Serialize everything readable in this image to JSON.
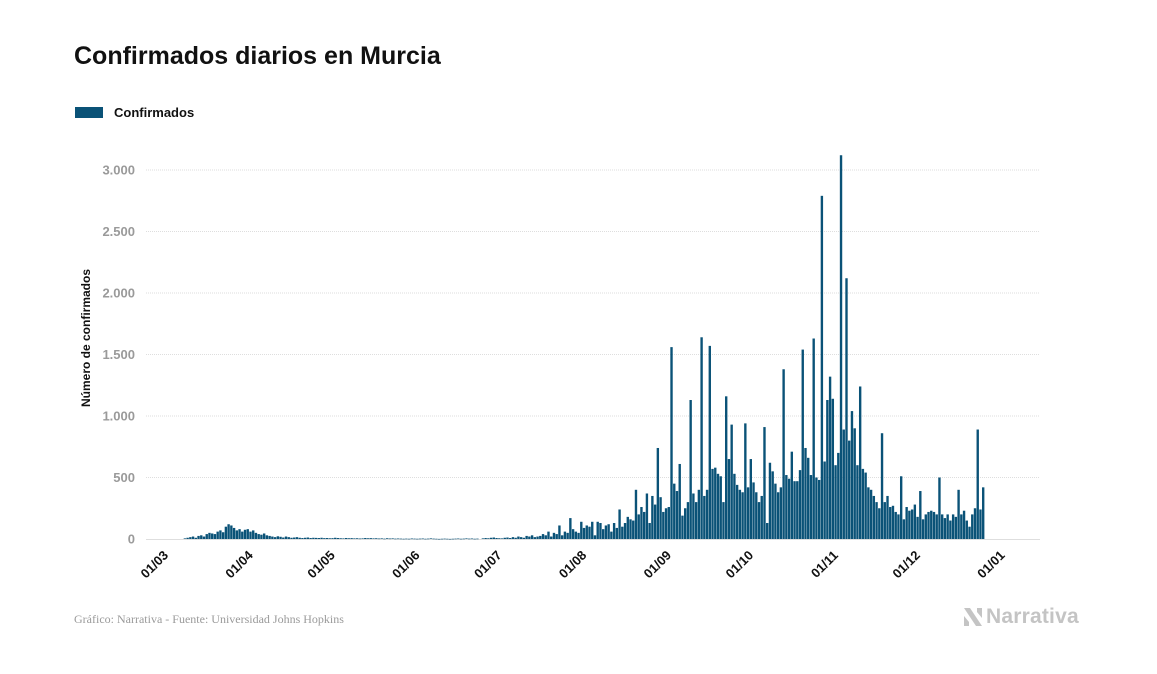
{
  "header": {
    "title": "Confirmados diarios en Murcia"
  },
  "legend": {
    "label": "Confirmados",
    "color": "#0a5277"
  },
  "footer": {
    "source": "Gráfico: Narrativa - Fuente: Universidad Johns Hopkins",
    "brand": "Narrativa",
    "brand_color": "#c4c4c4"
  },
  "colors": {
    "bar": "#0a5277",
    "grid": "#dedede",
    "tick_label": "#9a9a9a",
    "axis_title": "#111111"
  },
  "chart_data": {
    "type": "bar",
    "title": "Confirmados diarios en Murcia",
    "ylabel": "Número de confirmados",
    "xlabel": "",
    "ylim": [
      0,
      3250
    ],
    "yticks": [
      0,
      500,
      1000,
      1500,
      2000,
      2500,
      3000
    ],
    "ytick_labels": [
      "0",
      "500",
      "1.000",
      "1.500",
      "2.000",
      "2.500",
      "3.000"
    ],
    "xticks": [
      {
        "label": "01/03",
        "day": 0
      },
      {
        "label": "01/04",
        "day": 31
      },
      {
        "label": "01/05",
        "day": 61
      },
      {
        "label": "01/06",
        "day": 92
      },
      {
        "label": "01/07",
        "day": 122
      },
      {
        "label": "01/08",
        "day": 153
      },
      {
        "label": "01/09",
        "day": 184
      },
      {
        "label": "01/10",
        "day": 214
      },
      {
        "label": "01/11",
        "day": 245
      },
      {
        "label": "01/12",
        "day": 275
      },
      {
        "label": "01/01",
        "day": 306
      }
    ],
    "x_start": "01/03",
    "grid": true,
    "legend_position": "top-left",
    "series": [
      {
        "name": "Confirmados",
        "values": [
          0,
          0,
          0,
          0,
          0,
          0,
          0,
          0,
          5,
          10,
          15,
          20,
          10,
          25,
          30,
          20,
          40,
          50,
          45,
          40,
          60,
          70,
          55,
          100,
          120,
          110,
          90,
          70,
          80,
          60,
          75,
          80,
          60,
          70,
          50,
          40,
          35,
          45,
          30,
          25,
          20,
          15,
          22,
          18,
          12,
          20,
          15,
          10,
          12,
          15,
          10,
          8,
          10,
          12,
          8,
          10,
          9,
          8,
          10,
          7,
          8,
          6,
          7,
          10,
          8,
          6,
          5,
          8,
          6,
          7,
          5,
          6,
          4,
          5,
          8,
          6,
          7,
          5,
          6,
          4,
          5,
          3,
          6,
          4,
          5,
          3,
          4,
          3,
          2,
          3,
          2,
          4,
          3,
          2,
          3,
          4,
          2,
          3,
          5,
          3,
          2,
          1,
          2,
          3,
          2,
          1,
          2,
          3,
          4,
          2,
          3,
          5,
          3,
          4,
          2,
          3,
          0,
          5,
          8,
          6,
          10,
          12,
          8,
          6,
          5,
          10,
          12,
          8,
          15,
          10,
          20,
          15,
          10,
          25,
          20,
          30,
          15,
          20,
          25,
          40,
          30,
          60,
          20,
          50,
          40,
          110,
          30,
          60,
          50,
          170,
          80,
          60,
          50,
          140,
          90,
          110,
          100,
          140,
          30,
          140,
          130,
          80,
          110,
          120,
          60,
          130,
          90,
          240,
          100,
          130,
          180,
          160,
          150,
          400,
          200,
          260,
          220,
          370,
          130,
          350,
          280,
          740,
          340,
          220,
          250,
          260,
          1560,
          450,
          390,
          610,
          190,
          250,
          300,
          1130,
          370,
          300,
          400,
          1640,
          350,
          400,
          1570,
          570,
          580,
          530,
          510,
          300,
          1160,
          650,
          930,
          530,
          440,
          400,
          380,
          940,
          420,
          650,
          460,
          380,
          300,
          350,
          910,
          130,
          620,
          550,
          450,
          380,
          420,
          1380,
          520,
          490,
          710,
          470,
          470,
          560,
          1540,
          740,
          660,
          520,
          1630,
          500,
          480,
          2790,
          630,
          1130,
          1320,
          1140,
          600,
          700,
          3120,
          890,
          2120,
          800,
          1040,
          900,
          600,
          1240,
          570,
          540,
          420,
          400,
          350,
          300,
          250,
          860,
          300,
          350,
          260,
          270,
          220,
          200,
          510,
          160,
          260,
          230,
          240,
          280,
          180,
          390,
          160,
          200,
          220,
          230,
          220,
          200,
          500,
          200,
          170,
          200,
          150,
          200,
          180,
          400,
          200,
          230,
          150,
          100,
          200,
          250,
          890,
          240,
          420,
          0,
          0,
          0,
          0,
          0,
          0
        ]
      }
    ]
  }
}
